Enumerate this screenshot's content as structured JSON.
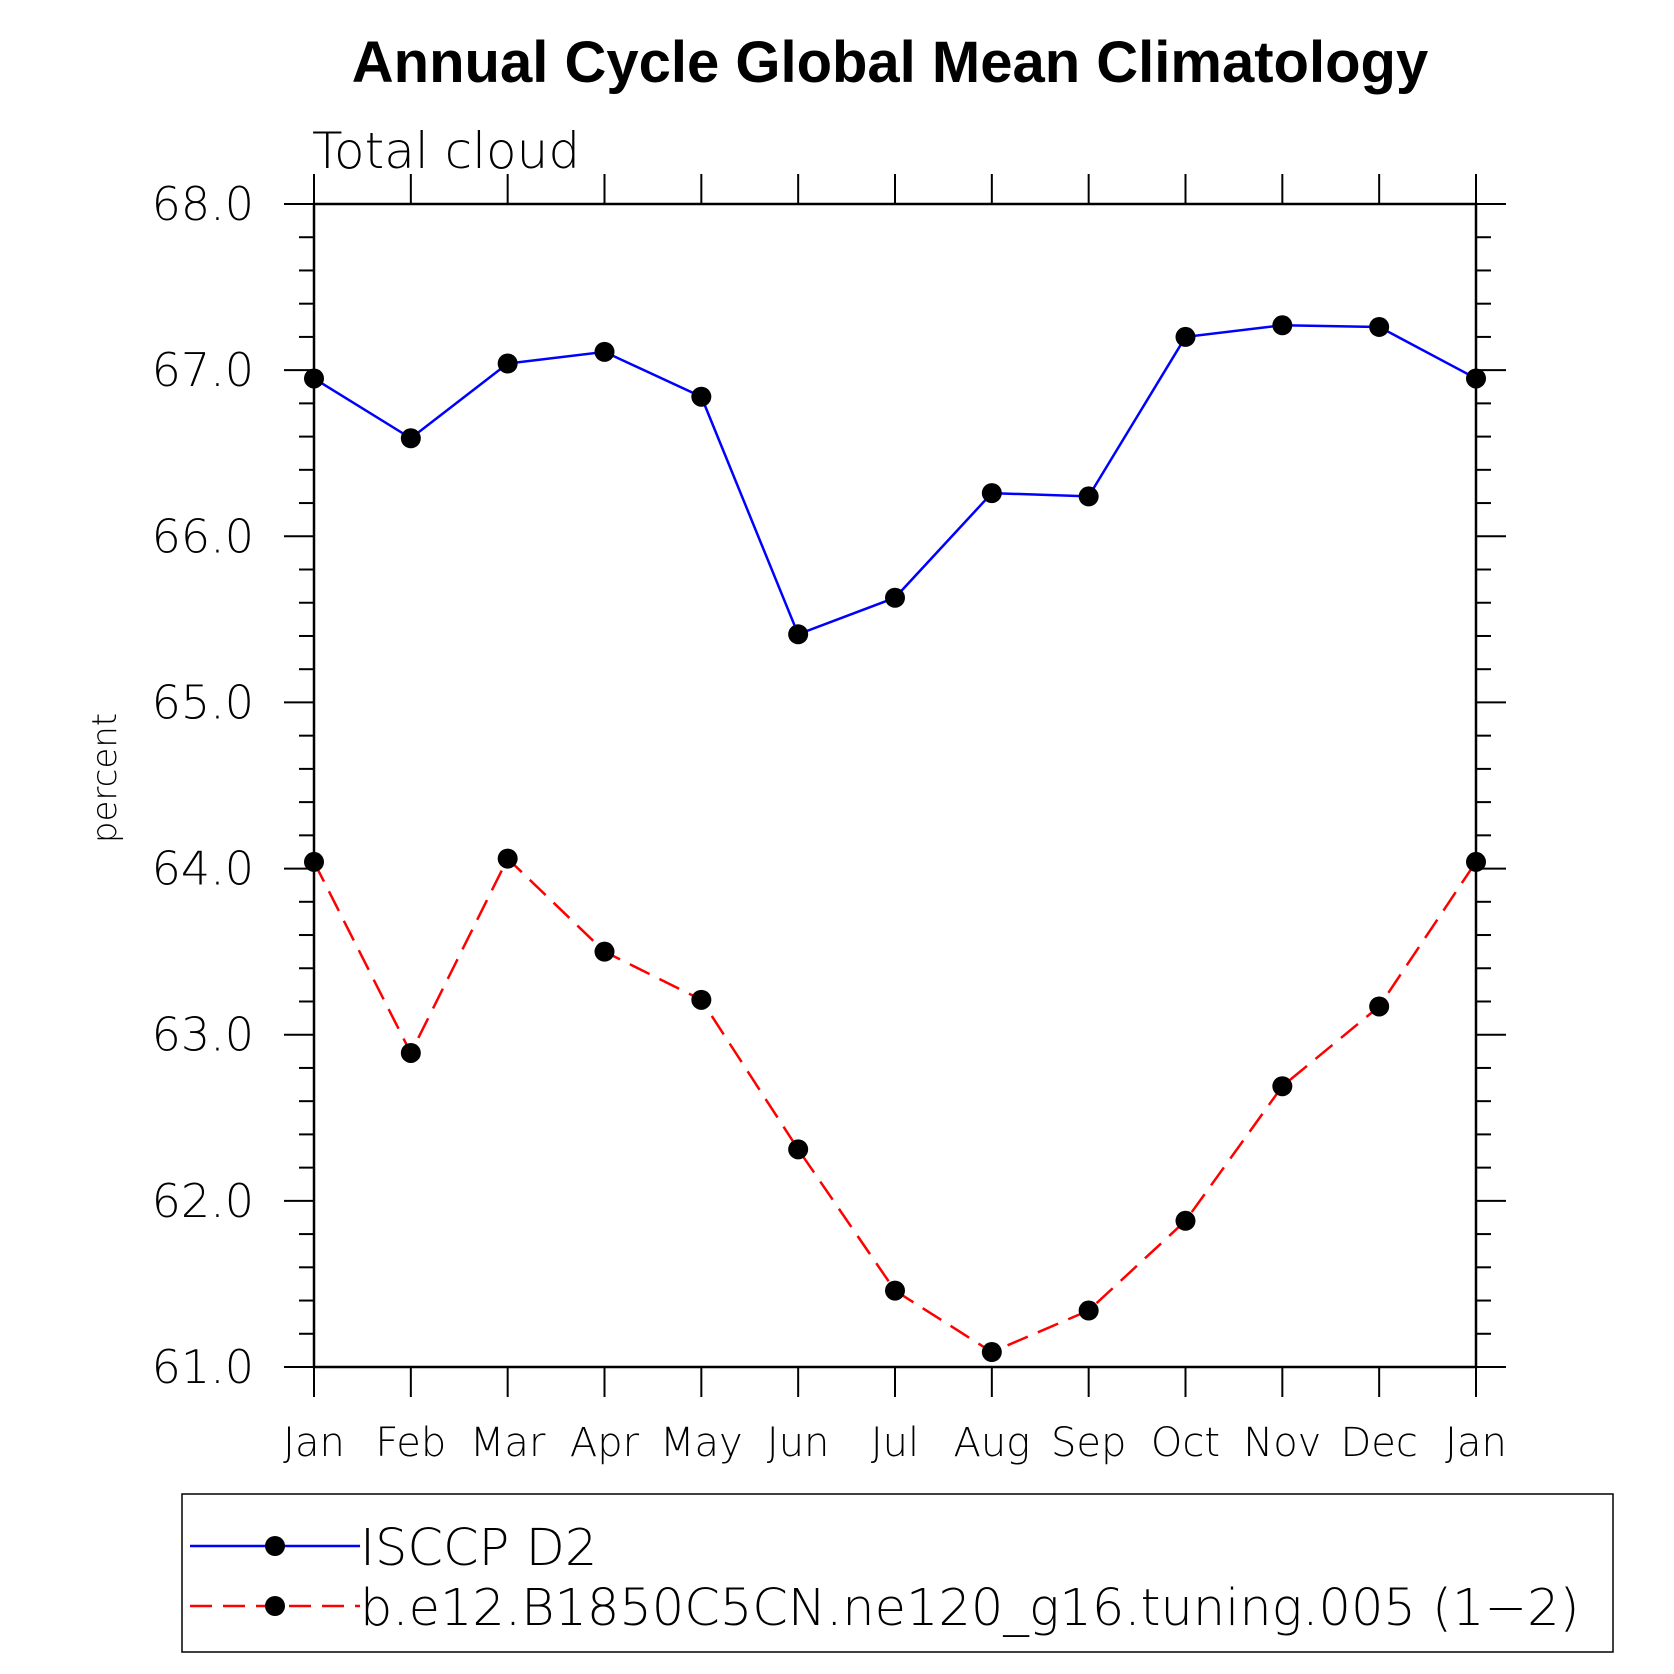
{
  "chart_data": {
    "type": "line",
    "title": "Annual Cycle Global Mean Climatology",
    "subtitle": "Total cloud",
    "ylabel": "percent",
    "xlabel": "",
    "categories": [
      "Jan",
      "Feb",
      "Mar",
      "Apr",
      "May",
      "Jun",
      "Jul",
      "Aug",
      "Sep",
      "Oct",
      "Nov",
      "Dec",
      "Jan"
    ],
    "ylim": [
      61.0,
      68.0
    ],
    "yticks": [
      "61.0",
      "62.0",
      "63.0",
      "64.0",
      "65.0",
      "66.0",
      "67.0",
      "68.0"
    ],
    "grid": false,
    "legend_position": "bottom",
    "series": [
      {
        "name": "ISCCP D2",
        "color": "#0000ff",
        "dash": "solid",
        "marker": "filled-circle",
        "marker_color": "#000000",
        "values": [
          66.95,
          66.59,
          67.04,
          67.11,
          66.84,
          65.41,
          65.63,
          66.26,
          66.24,
          67.2,
          67.27,
          67.26,
          66.95
        ]
      },
      {
        "name": "b.e12.B1850C5CN.ne120_g16.tuning.005 (1−2)",
        "color": "#ff0000",
        "dash": "dashed",
        "marker": "filled-circle",
        "marker_color": "#000000",
        "values": [
          64.04,
          62.89,
          64.06,
          63.5,
          63.21,
          62.31,
          61.46,
          61.09,
          61.34,
          61.88,
          62.69,
          63.17,
          64.04
        ]
      }
    ]
  }
}
